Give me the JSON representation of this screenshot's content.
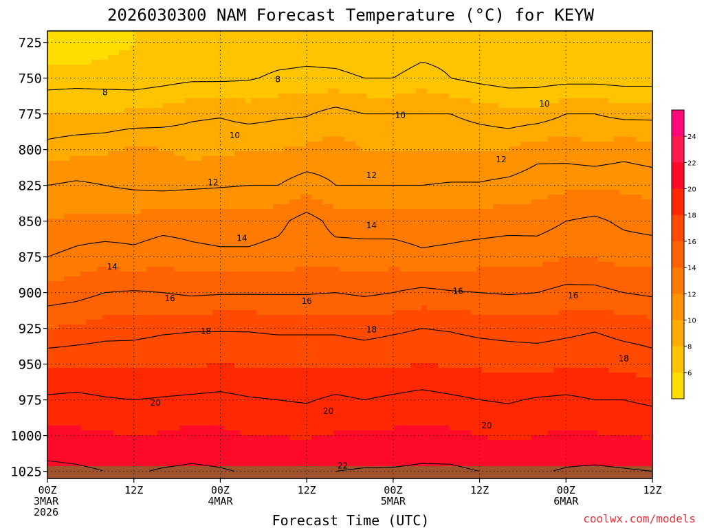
{
  "chart_data": {
    "type": "heatmap",
    "title": "2026030300 NAM Forecast Temperature (°C) for KEYW",
    "xlabel": "Forecast Time (UTC)",
    "ylabel": "",
    "credit": "coolwx.com/models",
    "x_hours_range": [
      0,
      84
    ],
    "x_ticks": [
      {
        "hour": 0,
        "lines": [
          "00Z",
          "3MAR",
          "2026"
        ]
      },
      {
        "hour": 12,
        "lines": [
          "12Z"
        ]
      },
      {
        "hour": 24,
        "lines": [
          "00Z",
          "4MAR"
        ]
      },
      {
        "hour": 36,
        "lines": [
          "12Z"
        ]
      },
      {
        "hour": 48,
        "lines": [
          "00Z",
          "5MAR"
        ]
      },
      {
        "hour": 60,
        "lines": [
          "12Z"
        ]
      },
      {
        "hour": 72,
        "lines": [
          "00Z",
          "6MAR"
        ]
      },
      {
        "hour": 84,
        "lines": [
          "12Z"
        ]
      }
    ],
    "y_ticks": [
      "725",
      "750",
      "775",
      "800",
      "825",
      "850",
      "875",
      "900",
      "925",
      "950",
      "975",
      "1000",
      "1025"
    ],
    "ylim": [
      1025,
      725
    ],
    "grid": true,
    "colorbar_ticks": [
      "6",
      "8",
      "10",
      "12",
      "14",
      "16",
      "18",
      "20",
      "22",
      "24"
    ],
    "colorbar_colors": [
      "#ffdd00",
      "#ffc400",
      "#ffab00",
      "#ff9200",
      "#ff7a00",
      "#ff6200",
      "#ff4a00",
      "#ff2800",
      "#ff0a28",
      "#ff1a50",
      "#ff0a78"
    ],
    "levels": [
      {
        "p": 725,
        "temps": [
          6.2,
          6.0,
          6.6,
          7.0,
          7.0,
          7.0,
          7.0,
          7.2,
          7.3,
          7.4,
          7.2,
          7.0,
          7.0,
          7.4,
          7.5,
          7.0,
          7.0,
          7.0,
          7.0,
          7.0,
          7.0,
          7.0
        ]
      },
      {
        "p": 750,
        "temps": [
          7.5,
          7.6,
          7.5,
          7.4,
          7.6,
          7.8,
          7.8,
          7.9,
          8.2,
          8.3,
          8.3,
          8.0,
          8.0,
          8.5,
          8.0,
          7.7,
          7.5,
          7.5,
          7.6,
          7.6,
          7.5,
          7.5
        ]
      },
      {
        "p": 775,
        "temps": [
          9.0,
          9.0,
          9.1,
          9.2,
          9.4,
          9.8,
          9.9,
          9.6,
          9.8,
          9.9,
          10.4,
          10.0,
          10.0,
          10.0,
          10.0,
          9.6,
          9.3,
          9.4,
          10.0,
          10.0,
          9.7,
          9.7
        ]
      },
      {
        "p": 800,
        "temps": [
          10.4,
          10.7,
          10.8,
          11.2,
          11.0,
          10.7,
          10.8,
          11.0,
          11.0,
          11.2,
          11.4,
          11.0,
          11.0,
          11.0,
          11.0,
          11.0,
          11.0,
          11.6,
          11.5,
          11.3,
          11.6,
          11.4
        ]
      },
      {
        "p": 825,
        "temps": [
          12.0,
          12.2,
          12.0,
          11.8,
          11.7,
          11.8,
          11.9,
          12.0,
          12.0,
          12.5,
          12.0,
          12.0,
          12.0,
          12.0,
          12.1,
          12.1,
          12.3,
          12.6,
          12.8,
          12.8,
          12.8,
          12.6
        ]
      },
      {
        "p": 850,
        "temps": [
          13.0,
          13.3,
          13.2,
          13.4,
          13.6,
          13.6,
          13.5,
          13.5,
          13.7,
          14.5,
          13.6,
          13.6,
          13.5,
          13.4,
          13.5,
          13.5,
          13.6,
          13.5,
          14.0,
          14.2,
          13.8,
          13.6
        ]
      },
      {
        "p": 875,
        "temps": [
          14.0,
          14.3,
          14.6,
          14.3,
          14.6,
          14.3,
          14.2,
          14.2,
          14.4,
          14.6,
          14.5,
          14.4,
          14.5,
          14.2,
          14.3,
          14.5,
          14.6,
          14.7,
          15.0,
          14.9,
          14.6,
          14.6
        ]
      },
      {
        "p": 900,
        "temps": [
          15.4,
          15.6,
          16.0,
          16.1,
          16.0,
          15.8,
          15.9,
          15.9,
          15.9,
          15.9,
          16.0,
          15.8,
          16.0,
          16.3,
          16.1,
          16.0,
          15.9,
          16.0,
          16.3,
          16.3,
          16.0,
          15.8
        ]
      },
      {
        "p": 925,
        "temps": [
          17.0,
          17.2,
          17.5,
          17.6,
          17.8,
          17.9,
          17.9,
          17.9,
          17.8,
          17.8,
          17.8,
          17.6,
          17.8,
          18.0,
          17.9,
          17.7,
          17.6,
          17.5,
          17.7,
          17.9,
          17.6,
          17.5
        ]
      },
      {
        "p": 950,
        "temps": [
          18.8,
          18.9,
          18.9,
          18.8,
          18.9,
          18.9,
          19.0,
          18.9,
          18.9,
          18.9,
          18.9,
          18.8,
          18.9,
          19.0,
          18.9,
          18.8,
          18.7,
          18.7,
          18.8,
          18.9,
          18.7,
          18.4
        ]
      },
      {
        "p": 975,
        "temps": [
          20.2,
          20.3,
          20.1,
          20.0,
          20.1,
          20.2,
          20.3,
          20.1,
          20.0,
          19.9,
          20.2,
          20.0,
          20.2,
          20.4,
          20.2,
          20.0,
          19.9,
          20.1,
          20.2,
          20.0,
          20.0,
          19.8
        ]
      },
      {
        "p": 1000,
        "temps": [
          21.3,
          21.2,
          21.1,
          21.0,
          21.1,
          21.3,
          21.2,
          21.0,
          21.0,
          20.9,
          21.1,
          21.1,
          21.2,
          21.3,
          21.2,
          21.0,
          20.8,
          21.0,
          21.2,
          21.1,
          21.0,
          20.9
        ]
      },
      {
        "p": 1025,
        "temps": [
          22.3,
          22.2,
          22.0,
          21.9,
          22.1,
          22.2,
          22.1,
          21.9,
          21.8,
          21.8,
          22.0,
          22.1,
          22.1,
          22.2,
          22.2,
          22.0,
          21.8,
          21.9,
          22.1,
          22.2,
          22.1,
          22.0
        ]
      }
    ],
    "contour_labels": [
      {
        "text": "8",
        "hour": 8,
        "p": 760
      },
      {
        "text": "8",
        "hour": 32,
        "p": 751
      },
      {
        "text": "10",
        "hour": 26,
        "p": 790
      },
      {
        "text": "10",
        "hour": 49,
        "p": 776
      },
      {
        "text": "10",
        "hour": 69,
        "p": 768
      },
      {
        "text": "12",
        "hour": 23,
        "p": 823
      },
      {
        "text": "12",
        "hour": 45,
        "p": 818
      },
      {
        "text": "12",
        "hour": 63,
        "p": 807
      },
      {
        "text": "14",
        "hour": 27,
        "p": 862
      },
      {
        "text": "14",
        "hour": 9,
        "p": 882
      },
      {
        "text": "14",
        "hour": 45,
        "p": 853
      },
      {
        "text": "16",
        "hour": 17,
        "p": 904
      },
      {
        "text": "16",
        "hour": 36,
        "p": 906
      },
      {
        "text": "16",
        "hour": 57,
        "p": 899
      },
      {
        "text": "16",
        "hour": 73,
        "p": 902
      },
      {
        "text": "18",
        "hour": 22,
        "p": 927
      },
      {
        "text": "18",
        "hour": 45,
        "p": 926
      },
      {
        "text": "18",
        "hour": 80,
        "p": 946
      },
      {
        "text": "20",
        "hour": 15,
        "p": 977
      },
      {
        "text": "20",
        "hour": 39,
        "p": 983
      },
      {
        "text": "20",
        "hour": 61,
        "p": 993
      },
      {
        "text": "22",
        "hour": 41,
        "p": 1021
      }
    ],
    "ground_band_color": "#a0522d"
  }
}
